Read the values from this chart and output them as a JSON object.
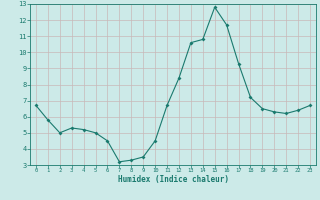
{
  "x": [
    0,
    1,
    2,
    3,
    4,
    5,
    6,
    7,
    8,
    9,
    10,
    11,
    12,
    13,
    14,
    15,
    16,
    17,
    18,
    19,
    20,
    21,
    22,
    23
  ],
  "y": [
    6.7,
    5.8,
    5.0,
    5.3,
    5.2,
    5.0,
    4.5,
    3.2,
    3.3,
    3.5,
    4.5,
    6.7,
    8.4,
    10.6,
    10.8,
    12.8,
    11.7,
    9.3,
    7.2,
    6.5,
    6.3,
    6.2,
    6.4,
    6.7
  ],
  "xlabel": "Humidex (Indice chaleur)",
  "xlim": [
    -0.5,
    23.5
  ],
  "ylim": [
    3,
    13
  ],
  "yticks": [
    3,
    4,
    5,
    6,
    7,
    8,
    9,
    10,
    11,
    12,
    13
  ],
  "xticks": [
    0,
    1,
    2,
    3,
    4,
    5,
    6,
    7,
    8,
    9,
    10,
    11,
    12,
    13,
    14,
    15,
    16,
    17,
    18,
    19,
    20,
    21,
    22,
    23
  ],
  "line_color": "#1a7a6e",
  "marker_color": "#1a7a6e",
  "bg_color": "#cceae8",
  "grid_color": "#c8b8b8",
  "axis_color": "#1a7a6e",
  "label_color": "#1a7a6e",
  "tick_color": "#1a7a6e",
  "bottom_bg": "#2a6060"
}
